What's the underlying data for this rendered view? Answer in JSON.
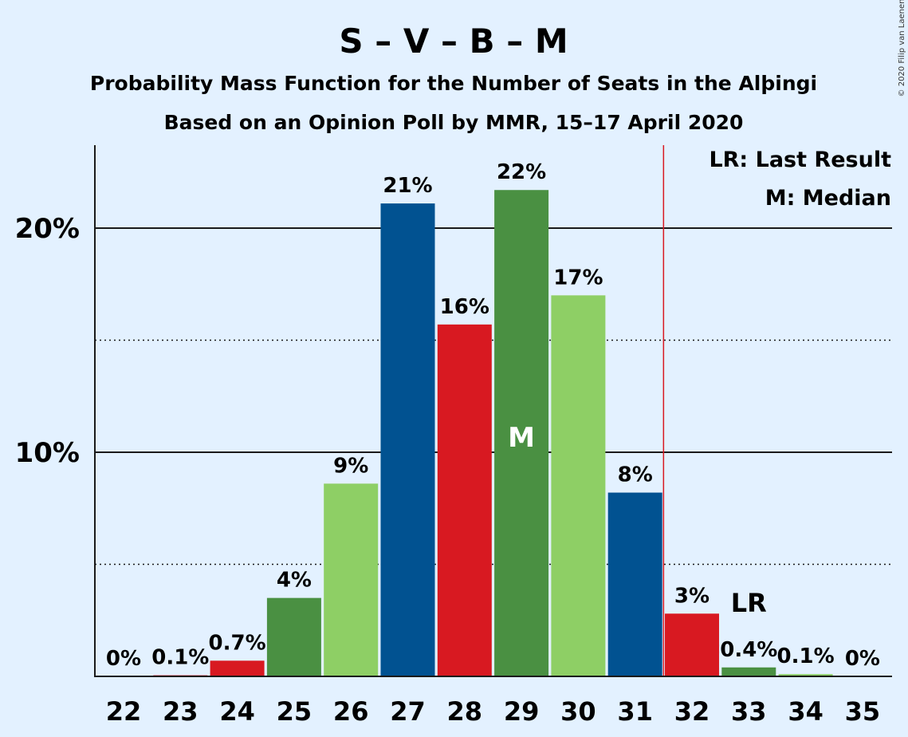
{
  "chart_data": {
    "type": "bar",
    "title": "S – V – B – M",
    "subtitle_1": "Probability Mass Function for the Number of Seats in the Alþingi",
    "subtitle_2": "Based on an Opinion Poll by MMR, 15–17 April 2020",
    "copyright": "© 2020 Filip van Laenen",
    "categories": [
      "22",
      "23",
      "24",
      "25",
      "26",
      "27",
      "28",
      "29",
      "30",
      "31",
      "32",
      "33",
      "34",
      "35"
    ],
    "values": [
      0,
      0.05,
      0.7,
      3.5,
      8.6,
      21.1,
      15.7,
      21.7,
      17.0,
      8.2,
      2.8,
      0.4,
      0.1,
      0
    ],
    "labels": [
      "0%",
      "0.1%",
      "0.7%",
      "4%",
      "9%",
      "21%",
      "16%",
      "22%",
      "17%",
      "8%",
      "3%",
      "0.4%",
      "0.1%",
      "0%"
    ],
    "bar_colors": [
      "#015291",
      "#d81921",
      "#d81921",
      "#4a9042",
      "#8ecf65",
      "#015291",
      "#d81921",
      "#4a9042",
      "#8ecf65",
      "#015291",
      "#d81921",
      "#4a9042",
      "#8ecf65",
      "#015291"
    ],
    "ylim": [
      0,
      23.5
    ],
    "yticks": [
      {
        "value": 10,
        "label": "10%"
      },
      {
        "value": 20,
        "label": "20%"
      }
    ],
    "minor_gridlines": [
      5,
      15
    ],
    "median": {
      "category": "29",
      "label": "M"
    },
    "last_result": {
      "category": "33",
      "label": "LR",
      "line_color": "#d81921"
    },
    "legend": {
      "placement": "top-right",
      "items": [
        "LR: Last Result",
        "M: Median"
      ]
    }
  }
}
